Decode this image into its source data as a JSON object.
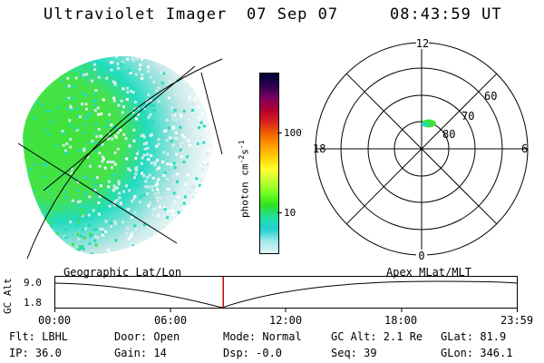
{
  "header": {
    "instrument": "Ultraviolet Imager",
    "date": "07 Sep 07",
    "time": "08:43:59 UT"
  },
  "colorbar": {
    "unit": "photon cm^-2 s^-1",
    "unit_parts": {
      "base": "photon cm",
      "exp1": "-2",
      "mid": "s",
      "exp2": "-1"
    },
    "ticks": [
      "100",
      "10"
    ],
    "colors": [
      "#000033",
      "#2a0050",
      "#7a0060",
      "#b00030",
      "#d82020",
      "#f06000",
      "#ff9a00",
      "#ffd000",
      "#ffff30",
      "#c0ff30",
      "#70ff20",
      "#30e020",
      "#20e0a0",
      "#20d0d0",
      "#a0e8e8",
      "#e0f4f4"
    ]
  },
  "polar": {
    "mlt_labels": {
      "top": "12",
      "right": "6",
      "bottom": "0",
      "left": "18"
    },
    "lat_labels": [
      "60",
      "70",
      "80"
    ]
  },
  "timeline": {
    "left_title": "Geographic Lat/Lon",
    "right_title": "Apex MLat/MLT",
    "axis_label": "GC Alt",
    "y_ticks": [
      "9.0",
      "1.8"
    ],
    "x_ticks": [
      "00:00",
      "06:00",
      "12:00",
      "18:00",
      "23:59"
    ],
    "current_time_fraction": 0.3639
  },
  "info": {
    "flt": "Flt: LBHL",
    "ip": "IP: 36.0",
    "door": "Door: Open",
    "gain": "Gain: 14",
    "mode": "Mode: Normal",
    "dsp": "Dsp:   -0.0",
    "gcalt": "GC Alt: 2.1 Re",
    "seq": "Seq: 39",
    "glat": "GLat:  81.9",
    "glon": "GLon: 346.1"
  },
  "colors": {
    "aurora_green": "#3ee23a",
    "aurora_cyan": "#22dcc0",
    "aurora_pale": "#d2ecec",
    "marker_red": "#cc0000"
  }
}
